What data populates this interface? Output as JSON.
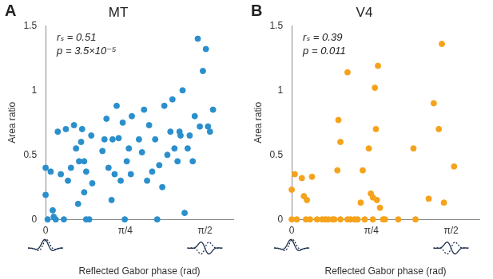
{
  "chart_data": [
    {
      "type": "scatter",
      "panel_label": "A",
      "title": "MT",
      "annotations": [
        "rₛ = 0.51",
        "p = 3.5×10⁻⁵"
      ],
      "x_label": "Reflected Gabor phase (rad)",
      "y_label": "Area ratio",
      "color": "#2b8fcc",
      "marker": "circle",
      "grid": false,
      "xlim": [
        0,
        1.85
      ],
      "xticks": [
        {
          "value": 0,
          "label": "0"
        },
        {
          "value": 0.7854,
          "label": "π/4"
        },
        {
          "value": 1.5708,
          "label": "π/2"
        }
      ],
      "ylim": [
        0,
        1.5
      ],
      "yticks": [
        0,
        0.5,
        1,
        1.5
      ],
      "x": [
        0.0,
        0.0,
        0.02,
        0.05,
        0.07,
        0.08,
        0.1,
        0.12,
        0.15,
        0.18,
        0.2,
        0.22,
        0.25,
        0.28,
        0.3,
        0.32,
        0.33,
        0.35,
        0.36,
        0.38,
        0.38,
        0.4,
        0.4,
        0.43,
        0.45,
        0.46,
        0.56,
        0.58,
        0.6,
        0.62,
        0.65,
        0.66,
        0.68,
        0.7,
        0.72,
        0.74,
        0.76,
        0.78,
        0.8,
        0.82,
        0.84,
        0.85,
        0.92,
        0.95,
        0.97,
        1.0,
        1.02,
        1.05,
        1.08,
        1.1,
        1.12,
        1.15,
        1.17,
        1.2,
        1.23,
        1.25,
        1.27,
        1.3,
        1.32,
        1.33,
        1.35,
        1.37,
        1.4,
        1.42,
        1.45,
        1.47,
        1.5,
        1.52,
        1.55,
        1.58,
        1.6,
        1.62,
        1.65
      ],
      "values": [
        0.4,
        0.19,
        0.0,
        0.37,
        0.07,
        0.02,
        0.0,
        0.68,
        0.35,
        0.0,
        0.7,
        0.3,
        0.4,
        0.73,
        0.55,
        0.12,
        0.45,
        0.6,
        0.7,
        0.45,
        0.21,
        0.37,
        0.0,
        0.0,
        0.65,
        0.28,
        0.53,
        0.62,
        0.78,
        0.4,
        0.15,
        0.62,
        0.35,
        0.88,
        0.63,
        0.3,
        0.75,
        0.0,
        0.45,
        0.55,
        0.35,
        0.8,
        0.62,
        0.52,
        0.85,
        0.3,
        0.73,
        0.37,
        0.62,
        0.0,
        0.42,
        0.25,
        0.88,
        0.5,
        0.68,
        0.93,
        0.55,
        0.45,
        0.68,
        0.65,
        1.0,
        0.05,
        0.55,
        0.65,
        0.45,
        0.8,
        1.4,
        0.72,
        1.15,
        1.32,
        0.72,
        0.68,
        0.85
      ]
    },
    {
      "type": "scatter",
      "panel_label": "B",
      "title": "V4",
      "annotations": [
        "rₛ = 0.39",
        "p = 0.011"
      ],
      "x_label": "Reflected Gabor phase (rad)",
      "y_label": "Area ratio",
      "color": "#f5a31c",
      "marker": "circle",
      "grid": false,
      "xlim": [
        0,
        1.85
      ],
      "xticks": [
        {
          "value": 0,
          "label": "0"
        },
        {
          "value": 0.7854,
          "label": "π/4"
        },
        {
          "value": 1.5708,
          "label": "π/2"
        }
      ],
      "ylim": [
        0,
        1.5
      ],
      "yticks": [
        0,
        0.5,
        1,
        1.5
      ],
      "x": [
        0.0,
        0.0,
        0.03,
        0.05,
        0.1,
        0.12,
        0.14,
        0.15,
        0.18,
        0.2,
        0.25,
        0.3,
        0.33,
        0.36,
        0.4,
        0.42,
        0.45,
        0.46,
        0.48,
        0.48,
        0.55,
        0.55,
        0.58,
        0.62,
        0.65,
        0.68,
        0.7,
        0.72,
        0.76,
        0.78,
        0.8,
        0.8,
        0.82,
        0.83,
        0.84,
        0.85,
        0.87,
        0.9,
        0.92,
        1.05,
        1.2,
        1.22,
        1.35,
        1.4,
        1.45,
        1.48,
        1.5,
        1.6
      ],
      "values": [
        0.0,
        0.23,
        0.35,
        0.0,
        0.32,
        0.18,
        0.0,
        0.15,
        0.0,
        0.33,
        0.0,
        0.0,
        0.0,
        0.0,
        0.0,
        0.0,
        0.38,
        0.77,
        0.6,
        0.0,
        1.14,
        0.0,
        0.0,
        0.0,
        0.0,
        0.13,
        0.38,
        0.0,
        0.55,
        0.2,
        0.17,
        0.0,
        1.02,
        0.7,
        0.15,
        1.19,
        0.09,
        0.0,
        0.0,
        0.0,
        0.55,
        0.0,
        0.16,
        0.9,
        0.7,
        1.36,
        0.13,
        0.41
      ]
    }
  ]
}
